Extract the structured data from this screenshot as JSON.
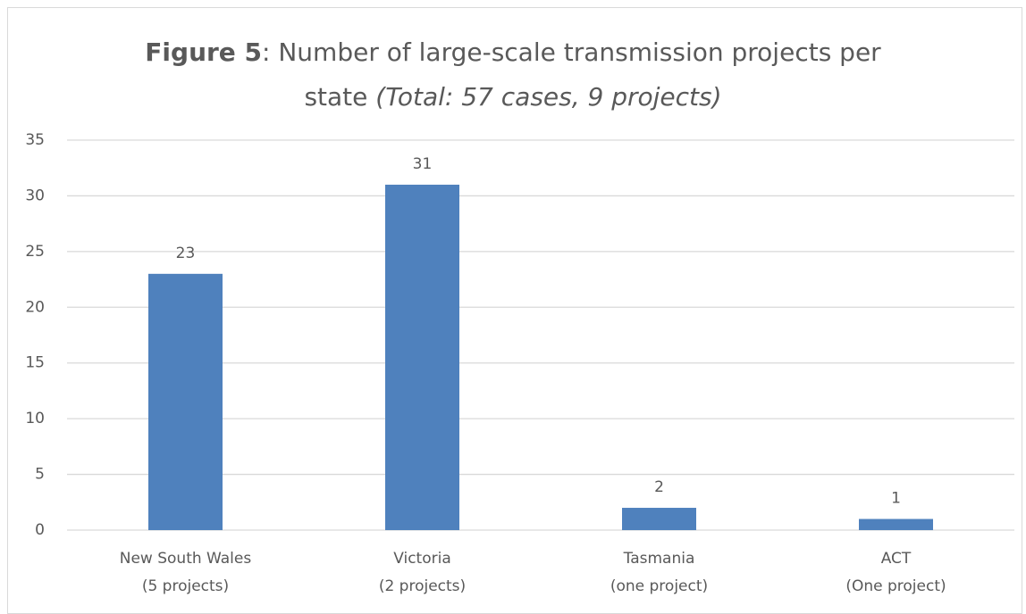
{
  "chart_data": {
    "type": "bar",
    "title_parts": [
      {
        "text": "Figure 5",
        "style": "bold"
      },
      {
        "text": ": Number of large-scale transmission projects per state ",
        "style": "normal"
      },
      {
        "text": "(Total: 57 cases, 9 projects)",
        "style": "italic"
      }
    ],
    "categories": [
      [
        "New South Wales",
        "(5 projects)"
      ],
      [
        "Victoria",
        "(2 projects)"
      ],
      [
        "Tasmania",
        "(one project)"
      ],
      [
        "ACT",
        "(One project)"
      ]
    ],
    "values": [
      23,
      31,
      2,
      1
    ],
    "color": "#4f81bd",
    "ylim": [
      0,
      35
    ],
    "yticks": [
      0,
      5,
      10,
      15,
      20,
      25,
      30,
      35
    ],
    "grid": true
  }
}
